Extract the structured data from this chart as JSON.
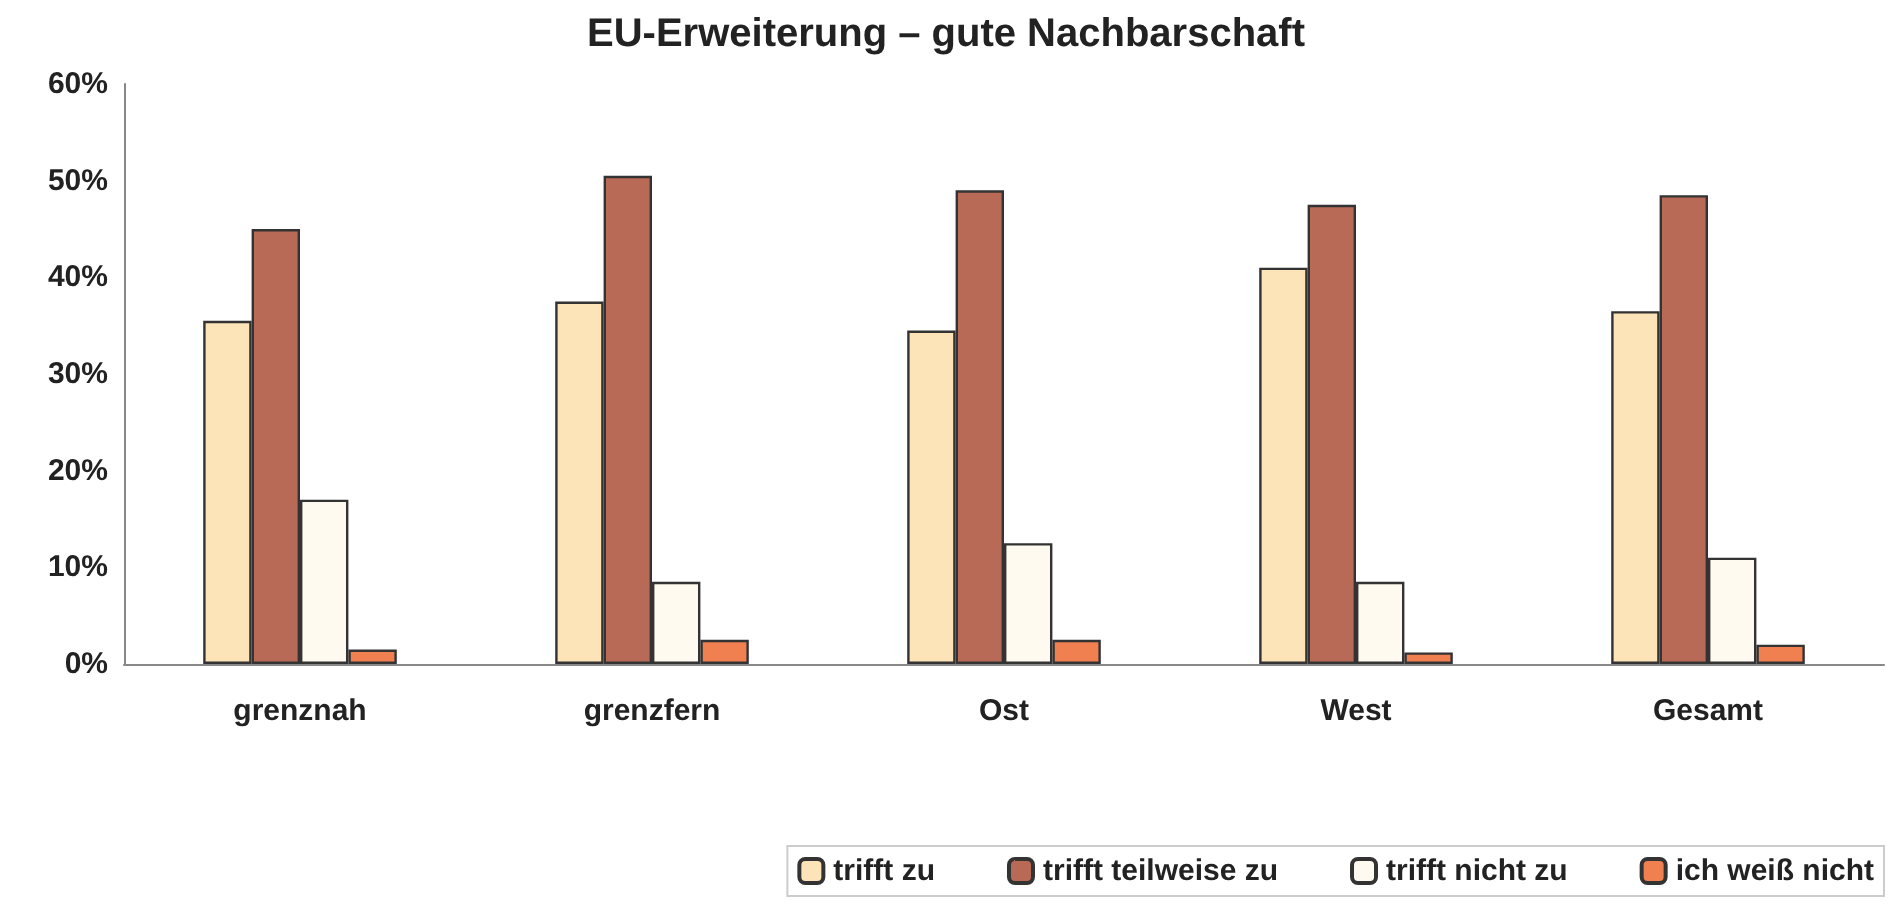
{
  "chart_data": {
    "type": "bar",
    "title": "EU-Erweiterung – gute Nachbarschaft",
    "categories": [
      "grenznah",
      "grenzfern",
      "Ost",
      "West",
      "Gesamt"
    ],
    "series": [
      {
        "name": "trifft zu",
        "color": "#fde3b8",
        "values": [
          35.5,
          37.5,
          34.5,
          41,
          36.5
        ]
      },
      {
        "name": "trifft teilweise zu",
        "color": "#b96a57",
        "values": [
          45,
          50.5,
          49,
          47.5,
          48.5
        ]
      },
      {
        "name": "trifft nicht zu",
        "color": "#fffaf0",
        "values": [
          17,
          8.5,
          12.5,
          8.5,
          11
        ]
      },
      {
        "name": "ich weiß nicht",
        "color": "#f08050",
        "values": [
          1.5,
          2.5,
          2.5,
          1.2,
          2
        ]
      }
    ],
    "ylim": [
      0,
      60
    ],
    "yticks": [
      {
        "value": 0,
        "label": "0%"
      },
      {
        "value": 10,
        "label": "10%"
      },
      {
        "value": 20,
        "label": "20%"
      },
      {
        "value": 30,
        "label": "30%"
      },
      {
        "value": 40,
        "label": "40%"
      },
      {
        "value": 50,
        "label": "50%"
      },
      {
        "value": 60,
        "label": "60%"
      }
    ],
    "grid": false,
    "legend": "bottom right"
  }
}
